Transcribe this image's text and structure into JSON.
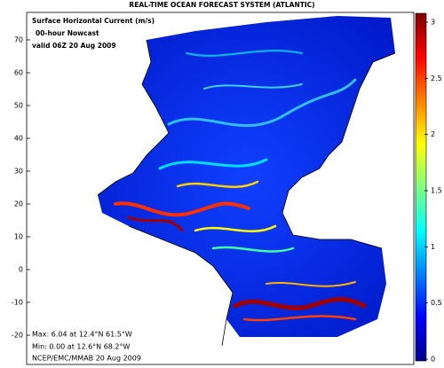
{
  "header": {
    "title": "REAL-TIME OCEAN FORECAST SYSTEM (ATLANTIC)"
  },
  "legend": {
    "lines": [
      "Surface Horizontal Current (m/s)",
      "00-hour Nowcast",
      "valid 06Z 20 Aug 2009"
    ]
  },
  "stats": {
    "max": "Max: 6.04 at 12.4°N 61.5°W",
    "min": "Min: 0.00 at 12.6°N 68.2°W",
    "credit": "NCEP/EMC/MMAB 20 Aug 2009"
  },
  "latitude_axis": {
    "ticks": [
      70,
      60,
      50,
      40,
      30,
      20,
      10,
      0,
      -10,
      -20
    ]
  },
  "colorbar": {
    "ticks": [
      0,
      0.5,
      1,
      1.5,
      2,
      2.5,
      3
    ],
    "colors": [
      "#00008f",
      "#0000ff",
      "#0080ff",
      "#00ffff",
      "#80ff80",
      "#ffff00",
      "#ff8000",
      "#ff0000",
      "#800000"
    ]
  }
}
